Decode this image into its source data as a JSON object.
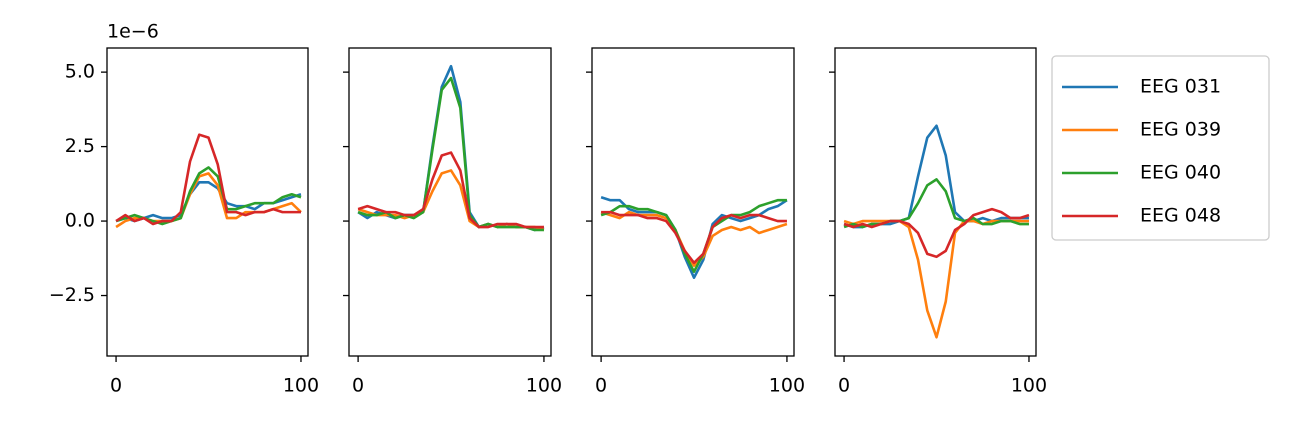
{
  "chart_data": [
    {
      "type": "line",
      "y_offset_text": "1e−6",
      "x": [
        0,
        5,
        10,
        15,
        20,
        25,
        30,
        35,
        40,
        45,
        50,
        55,
        60,
        65,
        70,
        75,
        80,
        85,
        90,
        95,
        100
      ],
      "xlim": [
        -4.9,
        103.8
      ],
      "xticks": [
        0,
        100
      ],
      "ylim": [
        -4.53,
        5.81
      ],
      "yticks": [
        {
          "value": -2.5,
          "label": "−2.5"
        },
        {
          "value": 0,
          "label": "0.0"
        },
        {
          "value": 2.5,
          "label": "2.5"
        },
        {
          "value": 5,
          "label": "5.0"
        }
      ],
      "series": [
        {
          "color": "#1f77b4",
          "values": [
            0,
            0.1,
            0,
            0.1,
            0.2,
            0.1,
            0.1,
            0.2,
            0.9,
            1.3,
            1.3,
            1.1,
            0.6,
            0.5,
            0.5,
            0.4,
            0.6,
            0.6,
            0.7,
            0.8,
            0.9
          ]
        },
        {
          "color": "#ff7f0e",
          "values": [
            -0.2,
            0,
            0.1,
            0.1,
            0,
            0,
            0,
            0.1,
            0.9,
            1.5,
            1.6,
            1.2,
            0.1,
            0.1,
            0.3,
            0.3,
            0.3,
            0.4,
            0.5,
            0.6,
            0.3
          ]
        },
        {
          "color": "#2ca02c",
          "values": [
            0,
            0.1,
            0.2,
            0.1,
            0,
            -0.1,
            0,
            0.1,
            1.0,
            1.6,
            1.8,
            1.5,
            0.4,
            0.4,
            0.5,
            0.6,
            0.6,
            0.6,
            0.8,
            0.9,
            0.8
          ]
        },
        {
          "color": "#d62728",
          "values": [
            0,
            0.2,
            0,
            0.1,
            -0.1,
            0,
            0,
            0.3,
            2.0,
            2.9,
            2.8,
            1.9,
            0.3,
            0.3,
            0.2,
            0.3,
            0.3,
            0.4,
            0.3,
            0.3,
            0.3
          ]
        }
      ]
    },
    {
      "type": "line",
      "x": [
        0,
        5,
        10,
        15,
        20,
        25,
        30,
        35,
        40,
        45,
        50,
        55,
        60,
        65,
        70,
        75,
        80,
        85,
        90,
        95,
        100
      ],
      "xlim": [
        -4.9,
        103.8
      ],
      "xticks": [
        0,
        100
      ],
      "series": [
        {
          "color": "#1f77b4",
          "values": [
            0.3,
            0.1,
            0.3,
            0.2,
            0.1,
            0.2,
            0.2,
            0.3,
            2.5,
            4.5,
            5.2,
            4.0,
            0.3,
            -0.2,
            -0.1,
            -0.2,
            -0.1,
            -0.2,
            -0.2,
            -0.3,
            -0.2
          ]
        },
        {
          "color": "#ff7f0e",
          "values": [
            0.4,
            0.3,
            0.2,
            0.2,
            0.2,
            0.1,
            0.2,
            0.3,
            1.0,
            1.6,
            1.7,
            1.2,
            0,
            -0.2,
            -0.1,
            -0.2,
            -0.1,
            -0.2,
            -0.2,
            -0.2,
            -0.3
          ]
        },
        {
          "color": "#2ca02c",
          "values": [
            0.3,
            0.2,
            0.2,
            0.3,
            0.1,
            0.2,
            0.1,
            0.3,
            2.4,
            4.4,
            4.8,
            3.8,
            0.2,
            -0.2,
            -0.1,
            -0.2,
            -0.2,
            -0.2,
            -0.2,
            -0.3,
            -0.3
          ]
        },
        {
          "color": "#d62728",
          "values": [
            0.4,
            0.5,
            0.4,
            0.3,
            0.3,
            0.2,
            0.2,
            0.4,
            1.4,
            2.2,
            2.3,
            1.7,
            0.1,
            -0.2,
            -0.2,
            -0.1,
            -0.1,
            -0.1,
            -0.2,
            -0.2,
            -0.2
          ]
        }
      ]
    },
    {
      "type": "line",
      "x": [
        0,
        5,
        10,
        15,
        20,
        25,
        30,
        35,
        40,
        45,
        50,
        55,
        60,
        65,
        70,
        75,
        80,
        85,
        90,
        95,
        100
      ],
      "xlim": [
        -4.9,
        103.8
      ],
      "xticks": [
        0,
        100
      ],
      "series": [
        {
          "color": "#1f77b4",
          "values": [
            0.8,
            0.7,
            0.7,
            0.4,
            0.3,
            0.3,
            0.3,
            0.2,
            -0.3,
            -1.2,
            -1.9,
            -1.3,
            -0.1,
            0.2,
            0.1,
            0,
            0.1,
            0.2,
            0.4,
            0.5,
            0.7
          ]
        },
        {
          "color": "#ff7f0e",
          "values": [
            0.3,
            0.2,
            0.1,
            0.3,
            0.2,
            0.2,
            0.2,
            0.1,
            -0.3,
            -1.0,
            -1.5,
            -1.2,
            -0.5,
            -0.3,
            -0.2,
            -0.3,
            -0.2,
            -0.4,
            -0.3,
            -0.2,
            -0.1
          ]
        },
        {
          "color": "#2ca02c",
          "values": [
            0.2,
            0.3,
            0.5,
            0.5,
            0.4,
            0.4,
            0.3,
            0.2,
            -0.3,
            -1.1,
            -1.7,
            -1.1,
            -0.2,
            0,
            0.2,
            0.2,
            0.3,
            0.5,
            0.6,
            0.7,
            0.7
          ]
        },
        {
          "color": "#d62728",
          "values": [
            0.3,
            0.3,
            0.2,
            0.2,
            0.2,
            0.1,
            0.1,
            0,
            -0.4,
            -1.0,
            -1.4,
            -1.1,
            -0.2,
            0.1,
            0.2,
            0.1,
            0.2,
            0.2,
            0.1,
            0,
            0
          ]
        }
      ]
    },
    {
      "type": "line",
      "legend": "right",
      "x": [
        0,
        5,
        10,
        15,
        20,
        25,
        30,
        35,
        40,
        45,
        50,
        55,
        60,
        65,
        70,
        75,
        80,
        85,
        90,
        95,
        100
      ],
      "xlim": [
        -4.9,
        103.8
      ],
      "xticks": [
        0,
        100
      ],
      "series": [
        {
          "name": "EEG 031",
          "color": "#1f77b4",
          "values": [
            -0.1,
            -0.2,
            -0.2,
            -0.1,
            -0.1,
            -0.1,
            0,
            0.1,
            1.5,
            2.8,
            3.2,
            2.2,
            0.3,
            0,
            0,
            0.1,
            0,
            0.1,
            0.1,
            0.1,
            0.1
          ]
        },
        {
          "name": "EEG 039",
          "color": "#ff7f0e",
          "values": [
            0,
            -0.1,
            0,
            0,
            0,
            0,
            0,
            -0.2,
            -1.3,
            -3.0,
            -3.9,
            -2.7,
            -0.4,
            0,
            0,
            -0.1,
            0,
            0,
            0,
            0,
            0
          ]
        },
        {
          "name": "EEG 040",
          "color": "#2ca02c",
          "values": [
            -0.2,
            -0.1,
            -0.2,
            -0.1,
            -0.1,
            0,
            0,
            0.1,
            0.6,
            1.2,
            1.4,
            1.0,
            0.1,
            0,
            0.1,
            -0.1,
            -0.1,
            0,
            0,
            -0.1,
            -0.1
          ]
        },
        {
          "name": "EEG 048",
          "color": "#d62728",
          "values": [
            -0.1,
            -0.2,
            -0.1,
            -0.2,
            -0.1,
            0,
            0,
            -0.1,
            -0.4,
            -1.1,
            -1.2,
            -1.0,
            -0.3,
            -0.1,
            0.2,
            0.3,
            0.4,
            0.3,
            0.1,
            0.1,
            0.2
          ]
        }
      ]
    }
  ]
}
